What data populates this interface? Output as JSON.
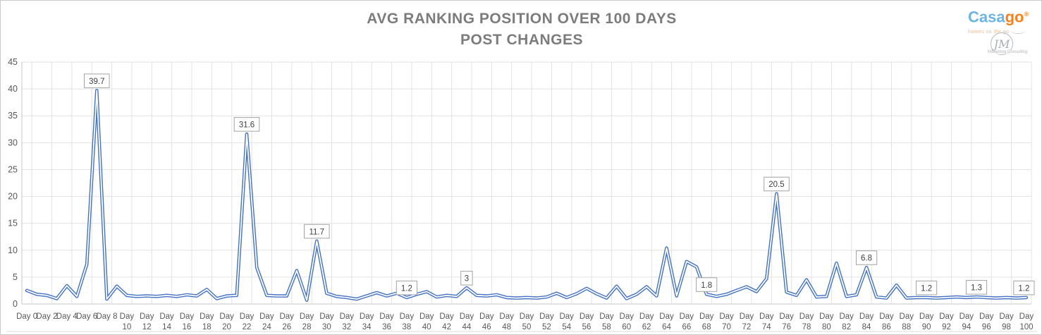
{
  "header": {
    "title_line1": "AVG RANKING POSITION OVER 100 DAYS",
    "title_line2": "POST CHANGES",
    "brand": {
      "wordmark_part1": "Casa",
      "wordmark_part2": "go",
      "registered_mark": "®",
      "tagline": "homes on the go",
      "monogram": "JM",
      "monogram_caption": "Marketing Consulting"
    }
  },
  "colors": {
    "series_line": "#4472C4",
    "title_text": "#7C7C7C",
    "axis_text": "#595959",
    "gridline": "#E3E3E3",
    "axis_line": "#C6C6C6",
    "label_box_border": "#A3A3A3",
    "label_box_fill": "#FFFFFF",
    "label_text": "#3F3F3F",
    "brand_blue": "#6CB5E2",
    "brand_orange": "#F5821F",
    "logo_gray": "#A9AFB6"
  },
  "chart_data": {
    "type": "line",
    "title": "AVG RANKING POSITION OVER 100 DAYS POST CHANGES",
    "xlabel": "",
    "ylabel": "",
    "x_label_prefix": "Day",
    "x_start": 0,
    "x_end": 100,
    "x_tick_interval": 2,
    "ylim": [
      0,
      45
    ],
    "ytick_step": 5,
    "grid": true,
    "legend": "none",
    "values": [
      2.5,
      1.8,
      1.6,
      1.0,
      3.4,
      1.4,
      7.4,
      39.7,
      0.9,
      3.3,
      1.6,
      1.4,
      1.5,
      1.4,
      1.6,
      1.4,
      1.7,
      1.5,
      2.7,
      1.0,
      1.5,
      1.6,
      31.6,
      6.8,
      1.6,
      1.5,
      1.5,
      6.2,
      0.7,
      11.7,
      2.0,
      1.4,
      1.2,
      0.9,
      1.5,
      2.1,
      1.5,
      2.0,
      1.2,
      1.8,
      2.3,
      1.3,
      1.6,
      1.4,
      3.0,
      1.6,
      1.5,
      1.7,
      1.2,
      1.1,
      1.2,
      1.1,
      1.3,
      2.0,
      1.2,
      1.9,
      2.9,
      1.9,
      1.1,
      3.3,
      1.0,
      1.8,
      3.2,
      1.5,
      10.4,
      1.5,
      7.9,
      6.9,
      1.8,
      1.4,
      1.8,
      2.5,
      3.2,
      2.3,
      4.7,
      20.5,
      2.2,
      1.6,
      4.5,
      1.3,
      1.4,
      7.6,
      1.4,
      1.7,
      6.8,
      1.3,
      1.1,
      3.5,
      1.1,
      1.2,
      1.2,
      1.1,
      1.2,
      1.3,
      1.2,
      1.3,
      1.2,
      1.1,
      1.2,
      1.1,
      1.2
    ],
    "labeled_points": [
      {
        "day": 7,
        "label": "39.7"
      },
      {
        "day": 22,
        "label": "31.6"
      },
      {
        "day": 29,
        "label": "11.7"
      },
      {
        "day": 38,
        "label": "1.2"
      },
      {
        "day": 44,
        "label": "3"
      },
      {
        "day": 68,
        "label": "1.8"
      },
      {
        "day": 75,
        "label": "20.5"
      },
      {
        "day": 84,
        "label": "6.8"
      },
      {
        "day": 90,
        "label": "1.2"
      },
      {
        "day": 95,
        "label": "1.3"
      },
      {
        "day": 100,
        "label": "1.2"
      }
    ]
  }
}
